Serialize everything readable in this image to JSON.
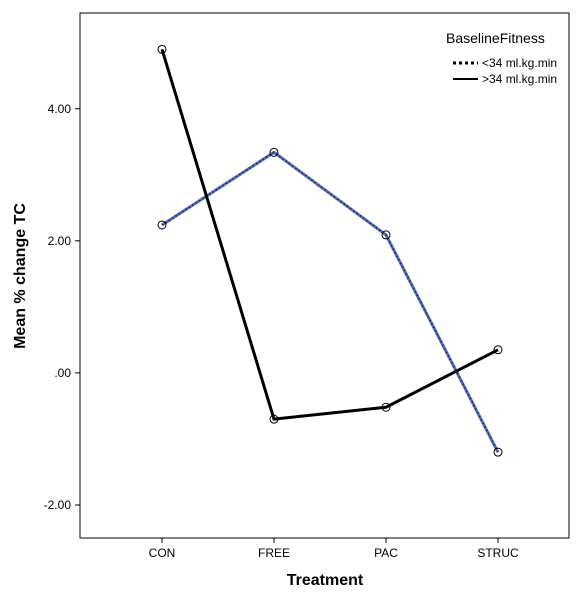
{
  "chart_data": {
    "type": "line",
    "xlabel": "Treatment",
    "ylabel": "Mean % change TC",
    "categories": [
      "CON",
      "FREE",
      "PAC",
      "STRUC"
    ],
    "ylim": [
      -2.5,
      5.45
    ],
    "yticks": [
      4.0,
      2.0,
      0.0,
      -2.0
    ],
    "ytick_labels": [
      "4.00",
      "2.00",
      ".00",
      "-2.00"
    ],
    "grid": false,
    "legend": {
      "title": "BaselineFitness",
      "placement": "top-right"
    },
    "series": [
      {
        "name": "<34 ml.kg.min",
        "values": [
          2.24,
          3.34,
          2.09,
          -1.2
        ],
        "color": "#4f6ebd",
        "style": "dotted"
      },
      {
        "name": ">34 ml.kg.min",
        "values": [
          4.9,
          -0.7,
          -0.52,
          0.35
        ],
        "color": "#000000",
        "style": "solid"
      }
    ]
  }
}
